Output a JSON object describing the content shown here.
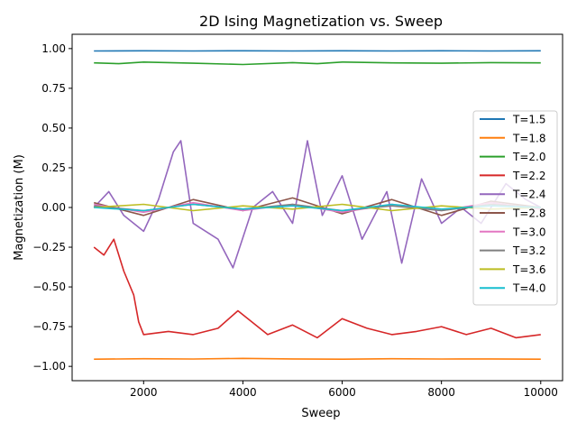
{
  "chart_data": {
    "type": "line",
    "title": "2D Ising Magnetization vs. Sweep",
    "xlabel": "Sweep",
    "ylabel": "Magnetization (M)",
    "xlim": [
      560,
      10440
    ],
    "ylim": [
      -1.09,
      1.09
    ],
    "xticks": [
      2000,
      4000,
      6000,
      8000,
      10000
    ],
    "yticks": [
      -1.0,
      -0.75,
      -0.5,
      -0.25,
      0.0,
      0.25,
      0.5,
      0.75,
      1.0
    ],
    "xtick_labels": [
      "2000",
      "4000",
      "6000",
      "8000",
      "10000"
    ],
    "ytick_labels": [
      "−1.00",
      "−0.75",
      "−0.50",
      "−0.25",
      "0.00",
      "0.25",
      "0.50",
      "0.75",
      "1.00"
    ],
    "grid": false,
    "legend_position": "center-right",
    "series": [
      {
        "name": "T=1.5",
        "color": "#1f77b4",
        "x": [
          1000,
          2000,
          3000,
          4000,
          5000,
          6000,
          7000,
          8000,
          9000,
          10000
        ],
        "y": [
          0.985,
          0.986,
          0.985,
          0.986,
          0.985,
          0.986,
          0.985,
          0.986,
          0.985,
          0.986
        ]
      },
      {
        "name": "T=1.8",
        "color": "#ff7f0e",
        "x": [
          1000,
          2000,
          3000,
          4000,
          5000,
          6000,
          7000,
          8000,
          9000,
          10000
        ],
        "y": [
          -0.955,
          -0.952,
          -0.954,
          -0.95,
          -0.953,
          -0.955,
          -0.952,
          -0.954,
          -0.953,
          -0.955
        ]
      },
      {
        "name": "T=2.0",
        "color": "#2ca02c",
        "x": [
          1000,
          1500,
          2000,
          3000,
          4000,
          5000,
          5500,
          6000,
          7000,
          8000,
          9000,
          10000
        ],
        "y": [
          0.91,
          0.905,
          0.915,
          0.908,
          0.9,
          0.912,
          0.905,
          0.915,
          0.91,
          0.908,
          0.912,
          0.91
        ]
      },
      {
        "name": "T=2.2",
        "color": "#d62728",
        "x": [
          1000,
          1200,
          1400,
          1600,
          1800,
          1900,
          2000,
          2500,
          3000,
          3500,
          3900,
          4500,
          5000,
          5500,
          6000,
          6500,
          7000,
          7500,
          8000,
          8500,
          9000,
          9500,
          10000
        ],
        "y": [
          -0.25,
          -0.3,
          -0.2,
          -0.4,
          -0.55,
          -0.72,
          -0.8,
          -0.78,
          -0.8,
          -0.76,
          -0.65,
          -0.8,
          -0.74,
          -0.82,
          -0.7,
          -0.76,
          -0.8,
          -0.78,
          -0.75,
          -0.8,
          -0.76,
          -0.82,
          -0.8
        ]
      },
      {
        "name": "T=2.4",
        "color": "#9467bd",
        "x": [
          1000,
          1300,
          1600,
          2000,
          2300,
          2600,
          2750,
          3000,
          3500,
          3800,
          4200,
          4600,
          5000,
          5300,
          5600,
          6000,
          6400,
          6900,
          7200,
          7600,
          8000,
          8400,
          8800,
          9300,
          9700,
          10000
        ],
        "y": [
          0.0,
          0.1,
          -0.05,
          -0.15,
          0.05,
          0.35,
          0.42,
          -0.1,
          -0.2,
          -0.38,
          0.0,
          0.1,
          -0.1,
          0.42,
          -0.05,
          0.2,
          -0.2,
          0.1,
          -0.35,
          0.18,
          -0.1,
          0.0,
          -0.1,
          0.15,
          0.05,
          0.0
        ]
      },
      {
        "name": "T=2.8",
        "color": "#8c564b",
        "x": [
          1000,
          2000,
          3000,
          4000,
          5000,
          6000,
          7000,
          8000,
          9000,
          10000
        ],
        "y": [
          0.03,
          -0.05,
          0.05,
          -0.02,
          0.06,
          -0.04,
          0.05,
          -0.05,
          0.04,
          0.0
        ]
      },
      {
        "name": "T=3.0",
        "color": "#e377c2",
        "x": [
          1000,
          2000,
          3000,
          4000,
          5000,
          6000,
          7000,
          8000,
          9000,
          10000
        ],
        "y": [
          0.02,
          -0.03,
          0.03,
          -0.02,
          0.02,
          -0.03,
          0.02,
          -0.02,
          0.03,
          -0.01
        ]
      },
      {
        "name": "T=3.2",
        "color": "#7f7f7f",
        "x": [
          1000,
          2000,
          3000,
          4000,
          5000,
          6000,
          7000,
          8000,
          9000,
          10000
        ],
        "y": [
          0.01,
          -0.02,
          0.02,
          -0.01,
          0.02,
          -0.02,
          0.01,
          -0.02,
          0.02,
          0.0
        ]
      },
      {
        "name": "T=3.6",
        "color": "#bcbd22",
        "x": [
          1000,
          2000,
          3000,
          4000,
          5000,
          6000,
          7000,
          8000,
          9000,
          10000
        ],
        "y": [
          0.0,
          0.02,
          -0.02,
          0.01,
          -0.01,
          0.02,
          -0.02,
          0.01,
          -0.01,
          0.0
        ]
      },
      {
        "name": "T=4.0",
        "color": "#17becf",
        "x": [
          1000,
          2000,
          3000,
          4000,
          5000,
          6000,
          7000,
          8000,
          9000,
          10000
        ],
        "y": [
          0.0,
          -0.02,
          0.02,
          -0.01,
          0.01,
          -0.02,
          0.02,
          -0.01,
          0.01,
          0.0
        ]
      }
    ]
  }
}
